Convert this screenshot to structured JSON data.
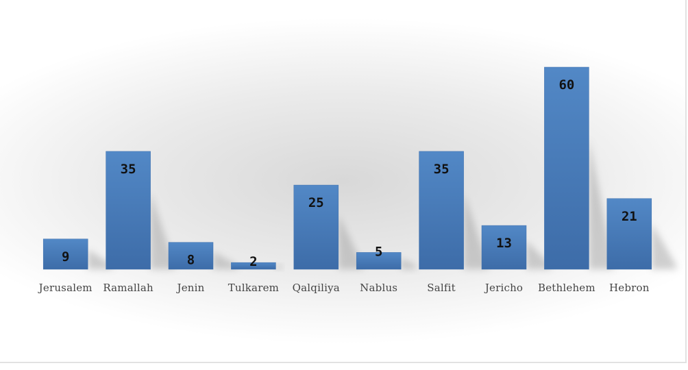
{
  "colors": {
    "bar_fill": "#4f81bd",
    "bar_fill_dark": "#3b6aa4",
    "shadow": "#9a9a9a",
    "value_text": "#111111",
    "category_text": "#444444"
  },
  "chart_data": {
    "type": "bar",
    "categories": [
      "Jerusalem",
      "Ramallah",
      "Jenin",
      "Tulkarem",
      "Qalqiliya",
      "Nablus",
      "Salfit",
      "Jericho",
      "Bethlehem",
      "Hebron"
    ],
    "values": [
      9,
      35,
      8,
      2,
      25,
      5,
      35,
      13,
      60,
      21
    ],
    "title": "",
    "xlabel": "",
    "ylabel": "",
    "ylim": [
      0,
      60
    ],
    "grid": false,
    "legend": "none",
    "data_labels": true
  }
}
